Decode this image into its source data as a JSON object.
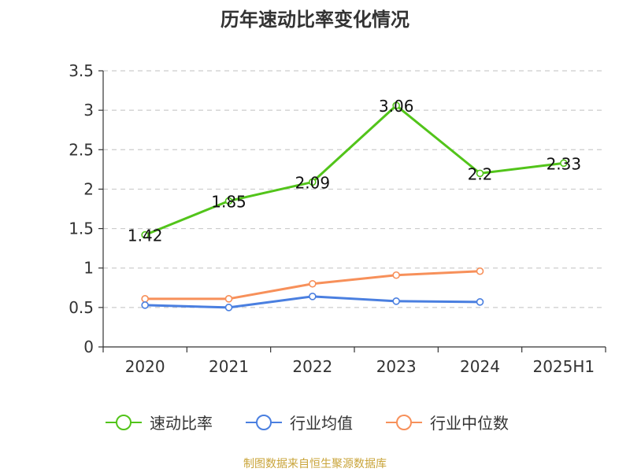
{
  "chart_data": {
    "type": "line",
    "title": "历年速动比率变化情况",
    "categories": [
      "2020",
      "2021",
      "2022",
      "2023",
      "2024",
      "2025H1"
    ],
    "ylim": [
      0,
      3.5
    ],
    "yticks": [
      "0",
      "0.5",
      "1",
      "1.5",
      "2",
      "2.5",
      "3",
      "3.5"
    ],
    "grid": true,
    "legend_position": "bottom",
    "series": [
      {
        "name": "速动比率",
        "color": "#52c41a",
        "values": [
          1.42,
          1.85,
          2.09,
          3.06,
          2.2,
          2.33
        ],
        "labels": [
          "1.42",
          "1.85",
          "2.09",
          "3.06",
          "2.2",
          "2.33"
        ]
      },
      {
        "name": "行业均值",
        "color": "#4a7fe0",
        "values": [
          0.53,
          0.5,
          0.64,
          0.58,
          0.57,
          null
        ]
      },
      {
        "name": "行业中位数",
        "color": "#f7905a",
        "values": [
          0.61,
          0.61,
          0.8,
          0.91,
          0.96,
          null
        ]
      }
    ]
  },
  "source": "制图数据来自恒生聚源数据库"
}
